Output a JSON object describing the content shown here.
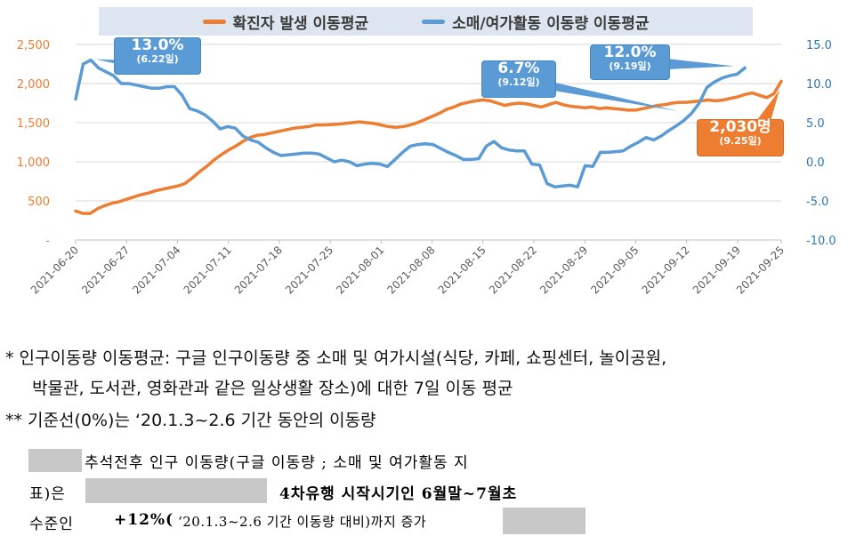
{
  "chart_data": {
    "type": "line",
    "legend": {
      "placement": "top",
      "entries": [
        "확진자 발생 이동평균",
        "소매/여가활동 이동량 이동평균"
      ]
    },
    "x_tick_labels": [
      "2021-06-20",
      "2021-06-27",
      "2021-07-04",
      "2021-07-11",
      "2021-07-18",
      "2021-07-25",
      "2021-08-01",
      "2021-08-08",
      "2021-08-15",
      "2021-08-22",
      "2021-08-29",
      "2021-09-05",
      "2021-09-12",
      "2021-09-19",
      "2021-09-25"
    ],
    "y_left": {
      "ticks": [
        "-",
        "500",
        "1,000",
        "1,500",
        "2,000",
        "2,500"
      ],
      "ylim": [
        0,
        2500
      ],
      "color": "#ed7d31"
    },
    "y_right": {
      "ticks": [
        "-10.0",
        "-5.0",
        "0.0",
        "5.0",
        "10.0",
        "15.0"
      ],
      "ylim": [
        -10,
        15
      ],
      "color": "#2e75b6"
    },
    "grid": "horizontal",
    "x_start": "2021-06-20",
    "series": [
      {
        "name": "확진자 발생 이동평균",
        "axis": "left",
        "color": "#ed7d31",
        "values": [
          370,
          340,
          340,
          400,
          440,
          470,
          490,
          520,
          550,
          580,
          600,
          630,
          650,
          670,
          690,
          720,
          790,
          870,
          940,
          1020,
          1090,
          1150,
          1200,
          1260,
          1310,
          1340,
          1350,
          1370,
          1390,
          1410,
          1430,
          1440,
          1450,
          1470,
          1470,
          1475,
          1480,
          1490,
          1500,
          1510,
          1500,
          1490,
          1470,
          1450,
          1440,
          1450,
          1470,
          1500,
          1540,
          1580,
          1620,
          1670,
          1700,
          1740,
          1760,
          1780,
          1790,
          1780,
          1750,
          1720,
          1740,
          1750,
          1740,
          1720,
          1700,
          1730,
          1760,
          1730,
          1710,
          1700,
          1690,
          1700,
          1680,
          1690,
          1680,
          1670,
          1660,
          1660,
          1680,
          1700,
          1720,
          1730,
          1750,
          1760,
          1760,
          1770,
          1780,
          1790,
          1780,
          1790,
          1810,
          1830,
          1860,
          1880,
          1850,
          1820,
          1870,
          2030
        ],
        "annotations": [
          {
            "label": "2,030명",
            "sublabel": "(9.25일)",
            "date": "2021-09-25",
            "value": 2030
          }
        ]
      },
      {
        "name": "소매/여가활동 이동량 이동평균",
        "axis": "right",
        "color": "#5b9bd5",
        "values": [
          8,
          12.5,
          13,
          12,
          11.5,
          11,
          10,
          10,
          9.8,
          9.6,
          9.4,
          9.4,
          9.6,
          9.6,
          8.5,
          6.8,
          6.5,
          6,
          5.2,
          4.2,
          4.5,
          4.3,
          3.3,
          2.8,
          2.5,
          1.8,
          1.2,
          0.8,
          0.9,
          1,
          1.1,
          1.1,
          1,
          0.5,
          0,
          0.2,
          0,
          -0.5,
          -0.3,
          -0.2,
          -0.3,
          -0.6,
          0.3,
          1.2,
          2,
          2.2,
          2.3,
          2.2,
          1.7,
          1.2,
          0.8,
          0.3,
          0.3,
          0.4,
          2,
          2.6,
          1.8,
          1.5,
          1.4,
          1.4,
          -0.3,
          -0.4,
          -2.8,
          -3.2,
          -3.1,
          -3,
          -3.2,
          -0.5,
          -0.6,
          1.2,
          1.2,
          1.3,
          1.4,
          2,
          2.5,
          3.1,
          2.8,
          3.3,
          4,
          4.6,
          5.3,
          6.2,
          7.5,
          9.5,
          10.2,
          10.7,
          11,
          11.2,
          12
        ],
        "annotations": [
          {
            "label": "13.0%",
            "sublabel": "(6.22일)",
            "date": "2021-06-22",
            "value": 13.0
          },
          {
            "label": "6.7%",
            "sublabel": "(9.12일)",
            "date": "2021-09-12",
            "value": 6.7
          },
          {
            "label": "12.0%",
            "sublabel": "(9.19일)",
            "date": "2021-09-19",
            "value": 12.0
          }
        ]
      }
    ]
  },
  "notes": {
    "line1": "* 인구이동량 이동평균: 구글 인구이동량 중 소매 및 여가시설(식당, 카페, 쇼핑센터, 놀이공원,",
    "line2": "박물관, 도서관, 영화관과 같은 일상생활 장소)에 대한 7일 이동 평균",
    "line3": "** 기준선(0%)는 ‘20.1.3~2.6 기간 동안의 이동량"
  },
  "body": {
    "row1": "추석전후 인구 이동량(구글 이동량 ; 소매 및 여가활동 지",
    "row2_a": "표)은",
    "row2_b": "4차유행 시작시기인 6월말~7월초",
    "row3_a": "수준인",
    "row3_b": "+12%(",
    "row3_c": "‘20.1.3~2.6 기간 이동량 대비)까지 증가"
  }
}
